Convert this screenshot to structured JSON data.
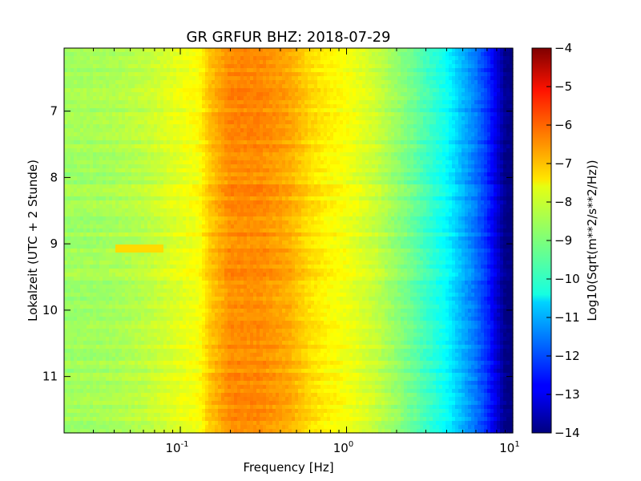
{
  "chart_data": {
    "type": "heatmap",
    "title": "GR GRFUR BHZ: 2018-07-29",
    "xlabel": "Frequency [Hz]",
    "ylabel": "Lokalzeit (UTC + 2 Stunde)",
    "x_scale": "log",
    "xlim": [
      0.02,
      10
    ],
    "x_ticks": [
      {
        "value": 0.1,
        "base": "10",
        "exp": "-1"
      },
      {
        "value": 1,
        "base": "10",
        "exp": "0"
      },
      {
        "value": 10,
        "base": "10",
        "exp": "1"
      }
    ],
    "ylim": [
      6.05,
      11.85
    ],
    "y_inverted": true,
    "y_ticks": [
      "7",
      "8",
      "9",
      "10",
      "11"
    ],
    "colorbar": {
      "label": "Log10(Sqrt(m**2/s**2/Hz))",
      "range": [
        -14,
        -4
      ],
      "ticks": [
        "-4",
        "-5",
        "-6",
        "-7",
        "-8",
        "-9",
        "-10",
        "-11",
        "-12",
        "-13",
        "-14"
      ],
      "colormap": "jet"
    },
    "spectrum_profile": {
      "frequency_hz": [
        0.02,
        0.04,
        0.06,
        0.1,
        0.13,
        0.15,
        0.2,
        0.3,
        0.45,
        0.6,
        0.8,
        1.0,
        1.5,
        2.0,
        2.5,
        3.0,
        4.0,
        5.0,
        6.0,
        7.0,
        8.0,
        9.0,
        10.0
      ],
      "log10_asd": [
        -8.7,
        -8.6,
        -8.4,
        -8.0,
        -7.8,
        -7.2,
        -6.6,
        -6.6,
        -6.9,
        -7.4,
        -7.7,
        -7.85,
        -8.3,
        -8.8,
        -9.2,
        -9.6,
        -10.2,
        -11.0,
        -11.6,
        -12.3,
        -13.1,
        -13.9,
        -14.0
      ]
    },
    "anomalies": [
      {
        "time_h": 9.07,
        "freq_range_hz": [
          0.04,
          0.08
        ],
        "log10_asd": -7.4
      }
    ]
  }
}
